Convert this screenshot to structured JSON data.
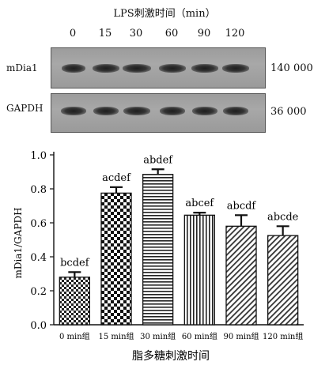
{
  "blot": {
    "title": "LPS刺激时间（min）",
    "lanes": [
      "0",
      "15",
      "30",
      "60",
      "90",
      "120"
    ],
    "rows": [
      {
        "label": "mDia1",
        "size": "140 000"
      },
      {
        "label": "GAPDH",
        "size": "36 000"
      }
    ]
  },
  "chart_data": {
    "type": "bar",
    "categories": [
      "0 min组",
      "15 min组",
      "30 min组",
      "60 min组",
      "90 min组",
      "120 min组"
    ],
    "values": [
      0.28,
      0.775,
      0.885,
      0.645,
      0.58,
      0.525
    ],
    "errors": [
      0.03,
      0.035,
      0.03,
      0.015,
      0.065,
      0.055
    ],
    "annotations": [
      "bcdef",
      "acdef",
      "abdef",
      "abcef",
      "abcdf",
      "abcde"
    ],
    "patterns": [
      "checker-small",
      "checker-large",
      "horizontal-stripes",
      "vertical-stripes",
      "diagonal-stripes",
      "diagonal-stripes"
    ],
    "xlabel": "脂多糖刺激时间",
    "ylabel": "mDia1/GAPDH",
    "ylim": [
      0,
      1.0
    ],
    "yticks": [
      "0.0",
      "0.2",
      "0.4",
      "0.6",
      "0.8",
      "1.0"
    ],
    "grid": false
  }
}
